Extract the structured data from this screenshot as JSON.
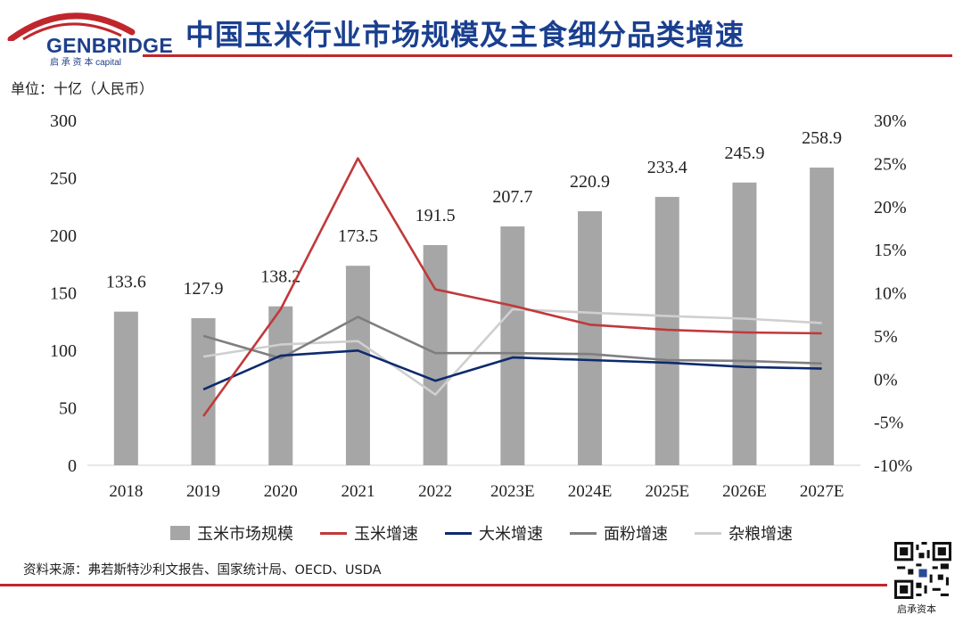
{
  "header": {
    "logo_text": "GENBRIDGE",
    "logo_subtext": "启 承 资 本 capital",
    "title": "中国玉米行业市场规模及主食细分品类增速",
    "unit_label": "单位：十亿（人民币）"
  },
  "colors": {
    "brand_blue": "#1a3f8f",
    "accent_red": "#c0272d",
    "bar": "#a6a6a6",
    "corn_growth": "#c0393b",
    "rice_growth": "#0d2a6e",
    "flour_growth": "#7f7f7f",
    "grain_growth": "#cfcfcf"
  },
  "chart_data": {
    "type": "bar",
    "categories": [
      "2018",
      "2019",
      "2020",
      "2021",
      "2022",
      "2023E",
      "2024E",
      "2025E",
      "2026E",
      "2027E"
    ],
    "left_axis": {
      "min": 0,
      "max": 300,
      "ticks": [
        "0",
        "50",
        "100",
        "150",
        "200",
        "250",
        "300"
      ]
    },
    "right_axis": {
      "min": -10,
      "max": 30,
      "ticks": [
        "-10%",
        "-5%",
        "0%",
        "5%",
        "10%",
        "15%",
        "20%",
        "25%",
        "30%"
      ]
    },
    "bar_series": {
      "name": "玉米市场规模",
      "values": [
        133.6,
        127.9,
        138.2,
        173.5,
        191.5,
        207.7,
        220.9,
        233.4,
        245.9,
        258.9
      ],
      "labels": [
        "133.6",
        "127.9",
        "138.2",
        "173.5",
        "191.5",
        "207.7",
        "220.9",
        "233.4",
        "245.9",
        "258.9"
      ]
    },
    "line_series": [
      {
        "name": "玉米增速",
        "color": "#c0393b",
        "values": [
          null,
          -4.3,
          8.1,
          25.6,
          10.4,
          8.5,
          6.3,
          5.7,
          5.4,
          5.3
        ]
      },
      {
        "name": "大米增速",
        "color": "#0d2a6e",
        "values": [
          null,
          -1.2,
          2.7,
          3.3,
          -0.2,
          2.5,
          2.2,
          1.9,
          1.4,
          1.2
        ]
      },
      {
        "name": "面粉增速",
        "color": "#7f7f7f",
        "values": [
          null,
          5.0,
          2.4,
          7.2,
          3.0,
          3.0,
          2.9,
          2.2,
          2.1,
          1.8
        ]
      },
      {
        "name": "杂粮增速",
        "color": "#cfcfcf",
        "values": [
          null,
          2.6,
          4.0,
          4.4,
          -1.8,
          8.1,
          7.7,
          7.3,
          7.0,
          6.5
        ]
      }
    ],
    "grid": false,
    "legend_position": "bottom"
  },
  "footer": {
    "source": "资料来源：弗若斯特沙利文报告、国家统计局、OECD、USDA",
    "qr_caption": "启承资本"
  }
}
